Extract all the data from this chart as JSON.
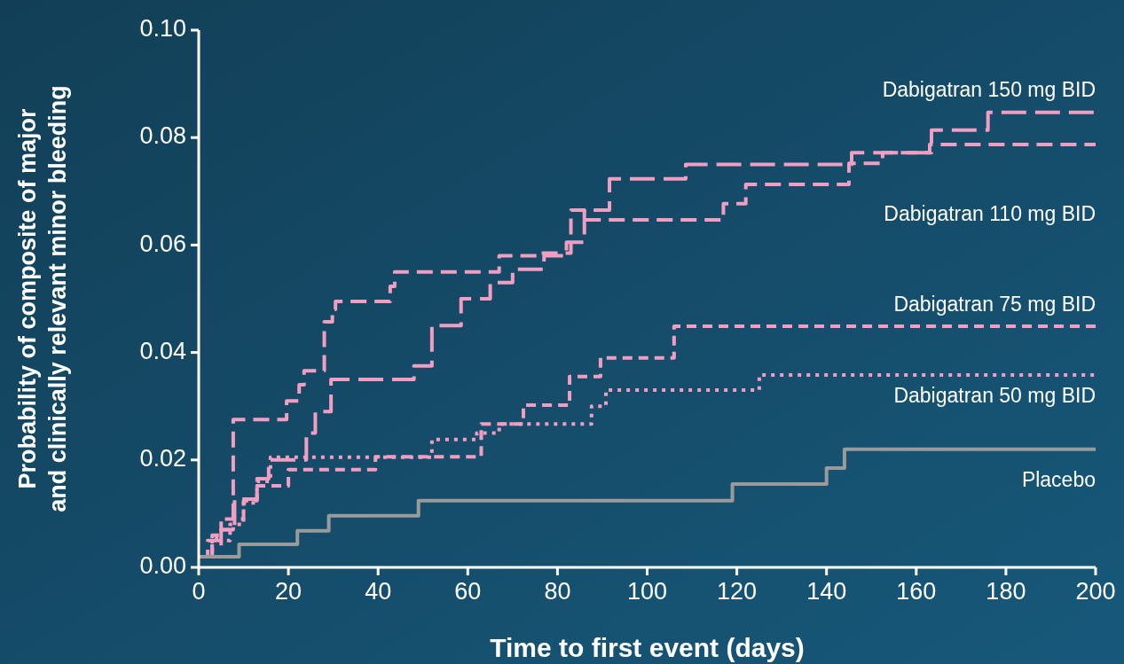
{
  "chart_data": {
    "type": "step",
    "xlabel": "Time to first event (days)",
    "ylabel": "Probability of composite of major\nand clinically relevant minor bleeding",
    "xlim": [
      0,
      200
    ],
    "xticks": [
      0,
      20,
      40,
      60,
      80,
      100,
      120,
      140,
      160,
      180,
      200
    ],
    "ylim": [
      0,
      0.1
    ],
    "yticks": [
      {
        "value": 0,
        "label": "0.00"
      },
      {
        "value": 0.02,
        "label": "0.02"
      },
      {
        "value": 0.04,
        "label": "0.04"
      },
      {
        "value": 0.06,
        "label": "0.06"
      },
      {
        "value": 0.08,
        "label": "0.08"
      },
      {
        "value": 0.1,
        "label": "0.10"
      }
    ],
    "grid": false,
    "marker": "none",
    "series": [
      {
        "name": "Dabigatran 150 mg BID",
        "color": "#f19ec2",
        "line_style": "dashed",
        "x": [
          0,
          3,
          5,
          8,
          13,
          15.6,
          24,
          26,
          29.5,
          48,
          52,
          58.5,
          65,
          70,
          77,
          82,
          86,
          91.6,
          108.6,
          145.6,
          163.4,
          176,
          200
        ],
        "values": [
          0.002,
          0.004,
          0.007,
          0.0127,
          0.0165,
          0.02,
          0.025,
          0.029,
          0.035,
          0.0375,
          0.045,
          0.05,
          0.053,
          0.0555,
          0.058,
          0.0605,
          0.0665,
          0.0723,
          0.075,
          0.0772,
          0.0814,
          0.0847,
          0.0847
        ]
      },
      {
        "name": "Dabigatran 110 mg BID",
        "color": "#f19ec2",
        "line_style": "dashed",
        "x": [
          0,
          2,
          4,
          7.7,
          19.6,
          22.4,
          23.5,
          28,
          29.8,
          30.5,
          42.7,
          43.7,
          67,
          76,
          83,
          86,
          117,
          122,
          145,
          152.5,
          163,
          200
        ],
        "values": [
          0.002,
          0.005,
          0.007,
          0.0275,
          0.031,
          0.034,
          0.0366,
          0.0457,
          0.048,
          0.0495,
          0.0523,
          0.055,
          0.058,
          0.0585,
          0.0665,
          0.0647,
          0.0677,
          0.0713,
          0.0752,
          0.0772,
          0.0787,
          0.0787
        ]
      },
      {
        "name": "Dabigatran 75 mg BID",
        "color": "#f19ec2",
        "line_style": "dashed",
        "x": [
          0,
          3,
          5,
          10,
          13,
          20,
          39.4,
          63,
          72.4,
          82.7,
          89.6,
          106,
          200
        ],
        "values": [
          0.002,
          0.006,
          0.009,
          0.0124,
          0.0152,
          0.0182,
          0.0206,
          0.0267,
          0.0302,
          0.0355,
          0.039,
          0.0449,
          0.0449
        ]
      },
      {
        "name": "Dabigatran 50 mg BID",
        "color": "#f19ec2",
        "line_style": "dotted",
        "x": [
          0,
          3,
          7,
          10,
          13,
          16,
          52,
          62,
          67,
          87.6,
          90.8,
          125,
          200
        ],
        "values": [
          0.002,
          0.005,
          0.008,
          0.012,
          0.016,
          0.0205,
          0.0238,
          0.025,
          0.0267,
          0.03,
          0.033,
          0.0358,
          0.0358
        ]
      },
      {
        "name": "Placebo",
        "color": "#9a9a9a",
        "line_style": "solid",
        "x": [
          0,
          9,
          22,
          29,
          49,
          119,
          140,
          144,
          200
        ],
        "values": [
          0.002,
          0.0043,
          0.0068,
          0.0096,
          0.0124,
          0.0155,
          0.0185,
          0.022,
          0.022
        ]
      }
    ]
  }
}
